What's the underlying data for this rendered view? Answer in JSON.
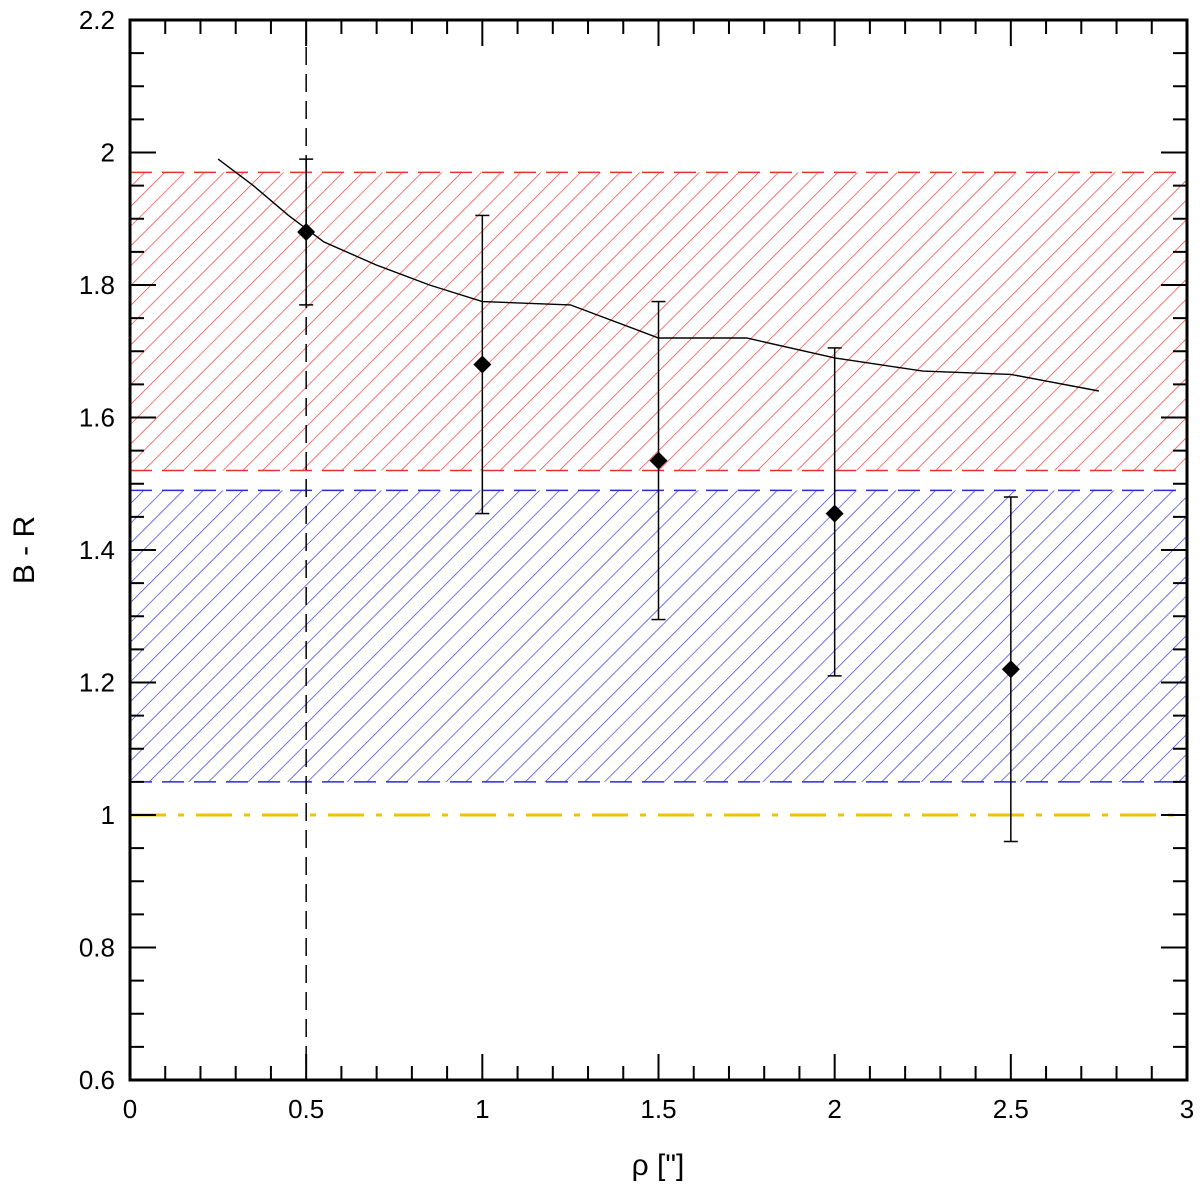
{
  "chart_data": {
    "type": "scatter",
    "title": "",
    "xlabel": "ρ [\"]",
    "ylabel": "B - R",
    "xlim": [
      0,
      3
    ],
    "ylim": [
      0.6,
      2.2
    ],
    "x_ticks": [
      "0",
      "0.5",
      "1",
      "1.5",
      "2",
      "2.5",
      "3"
    ],
    "y_ticks": [
      "0.6",
      "0.8",
      "1",
      "1.2",
      "1.4",
      "1.6",
      "1.8",
      "2",
      "2.2"
    ],
    "grid": false,
    "legend": "none",
    "points": [
      {
        "x": 0.5,
        "y": 1.88,
        "err_low": 1.77,
        "err_high": 1.99
      },
      {
        "x": 1.0,
        "y": 1.68,
        "err_low": 1.455,
        "err_high": 1.905
      },
      {
        "x": 1.5,
        "y": 1.535,
        "err_low": 1.295,
        "err_high": 1.775
      },
      {
        "x": 2.0,
        "y": 1.455,
        "err_low": 1.21,
        "err_high": 1.705
      },
      {
        "x": 2.5,
        "y": 1.22,
        "err_low": 0.96,
        "err_high": 1.48
      }
    ],
    "curve": [
      {
        "x": 0.25,
        "y": 1.99
      },
      {
        "x": 0.35,
        "y": 1.95
      },
      {
        "x": 0.45,
        "y": 1.905
      },
      {
        "x": 0.55,
        "y": 1.865
      },
      {
        "x": 0.7,
        "y": 1.83
      },
      {
        "x": 0.85,
        "y": 1.8
      },
      {
        "x": 1.0,
        "y": 1.775
      },
      {
        "x": 1.25,
        "y": 1.77
      },
      {
        "x": 1.5,
        "y": 1.72
      },
      {
        "x": 1.75,
        "y": 1.72
      },
      {
        "x": 2.0,
        "y": 1.69
      },
      {
        "x": 2.25,
        "y": 1.67
      },
      {
        "x": 2.5,
        "y": 1.665
      },
      {
        "x": 2.75,
        "y": 1.64
      }
    ],
    "red_band": {
      "y_low": 1.52,
      "y_high": 1.97,
      "color": "#e8332a"
    },
    "blue_band": {
      "y_low": 1.05,
      "y_high": 1.49,
      "color": "#2b2bd6"
    },
    "yellow_line": {
      "y": 1.0,
      "color": "#f2c200"
    },
    "vertical_line": {
      "x": 0.5
    }
  }
}
